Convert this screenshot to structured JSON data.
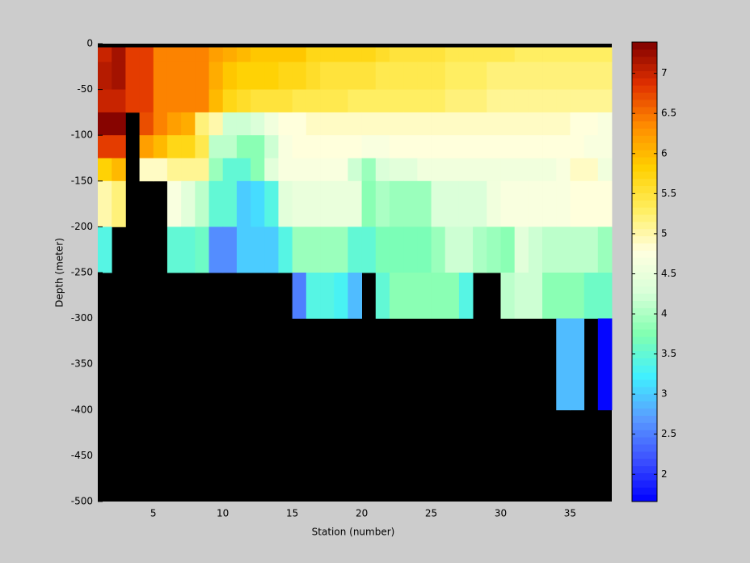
{
  "chart_data": {
    "type": "heatmap",
    "xlabel": "Station (number)",
    "ylabel": "Depth (meter)",
    "x": [
      1,
      2,
      3,
      4,
      5,
      6,
      7,
      8,
      9,
      10,
      11,
      12,
      13,
      14,
      15,
      16,
      17,
      18,
      19,
      20,
      21,
      22,
      23,
      24,
      25,
      26,
      27,
      28,
      29,
      30,
      31,
      32,
      33,
      34,
      35,
      36,
      37,
      38
    ],
    "y": [
      -4,
      -20,
      -50,
      -75,
      -100,
      -125,
      -150,
      -200,
      -250,
      -300,
      -400
    ],
    "values": [
      [
        7.0,
        7.2,
        6.8,
        6.8,
        6.4,
        6.4,
        6.4,
        6.4,
        6.2,
        6.1,
        6.0,
        5.9,
        5.9,
        5.9,
        5.9,
        5.7,
        5.7,
        5.7,
        5.7,
        5.7,
        5.6,
        5.5,
        5.5,
        5.5,
        5.5,
        5.4,
        5.4,
        5.4,
        5.4,
        5.4,
        5.3,
        5.3,
        5.3,
        5.3,
        5.3,
        5.3,
        5.3
      ],
      [
        7.1,
        7.2,
        6.8,
        6.8,
        6.4,
        6.4,
        6.4,
        6.4,
        6.1,
        5.9,
        5.8,
        5.8,
        5.8,
        5.7,
        5.7,
        5.6,
        5.5,
        5.5,
        5.5,
        5.5,
        5.4,
        5.4,
        5.4,
        5.4,
        5.4,
        5.3,
        5.3,
        5.3,
        5.2,
        5.2,
        5.2,
        5.2,
        5.2,
        5.2,
        5.2,
        5.2,
        5.2
      ],
      [
        7.0,
        7.0,
        6.8,
        6.8,
        6.4,
        6.4,
        6.4,
        6.4,
        6.0,
        5.7,
        5.6,
        5.5,
        5.5,
        5.5,
        5.4,
        5.4,
        5.4,
        5.4,
        5.3,
        5.3,
        5.3,
        5.3,
        5.3,
        5.3,
        5.3,
        5.2,
        5.2,
        5.2,
        5.1,
        5.1,
        5.1,
        5.1,
        5.1,
        5.1,
        5.1,
        5.1,
        5.1
      ],
      [
        7.35,
        7.35,
        null,
        6.7,
        6.4,
        6.2,
        6.1,
        5.2,
        5.0,
        4.2,
        4.2,
        4.3,
        4.6,
        4.8,
        4.8,
        4.9,
        4.9,
        4.9,
        4.9,
        4.9,
        4.9,
        4.9,
        4.9,
        4.9,
        4.9,
        4.9,
        4.9,
        4.9,
        4.9,
        4.9,
        4.9,
        4.9,
        4.9,
        4.9,
        4.8,
        4.8,
        4.7
      ],
      [
        6.8,
        6.8,
        null,
        6.2,
        6.0,
        5.7,
        5.7,
        5.4,
        4.1,
        4.1,
        3.8,
        3.8,
        4.2,
        4.7,
        4.8,
        4.8,
        4.8,
        4.8,
        4.8,
        4.7,
        4.7,
        4.8,
        4.8,
        4.8,
        4.8,
        4.8,
        4.8,
        4.8,
        4.8,
        4.8,
        4.8,
        4.8,
        4.8,
        4.8,
        4.8,
        4.7,
        4.7
      ],
      [
        5.8,
        6.0,
        null,
        4.9,
        4.9,
        5.1,
        5.1,
        5.1,
        3.9,
        3.5,
        3.5,
        3.8,
        4.4,
        4.7,
        4.7,
        4.7,
        4.7,
        4.7,
        4.2,
        3.9,
        4.3,
        4.4,
        4.4,
        4.6,
        4.6,
        4.6,
        4.6,
        4.6,
        4.6,
        4.6,
        4.6,
        4.6,
        4.6,
        4.7,
        4.9,
        4.9,
        4.6
      ],
      [
        5.0,
        5.2,
        null,
        null,
        null,
        4.7,
        4.4,
        4.1,
        3.5,
        3.5,
        3.0,
        3.1,
        3.4,
        4.4,
        4.5,
        4.5,
        4.5,
        4.5,
        4.5,
        3.8,
        4.0,
        3.9,
        3.9,
        3.9,
        4.3,
        4.3,
        4.3,
        4.3,
        4.6,
        4.7,
        4.7,
        4.7,
        4.7,
        4.7,
        4.8,
        4.8,
        4.8
      ],
      [
        3.4,
        null,
        null,
        null,
        null,
        3.5,
        3.5,
        3.6,
        2.6,
        2.6,
        3.0,
        3.0,
        3.0,
        3.4,
        3.9,
        3.9,
        3.9,
        3.9,
        3.5,
        3.5,
        3.7,
        3.7,
        3.7,
        3.7,
        3.9,
        4.2,
        4.2,
        4.0,
        3.9,
        3.8,
        4.4,
        4.2,
        4.1,
        4.1,
        4.1,
        4.1,
        3.9
      ],
      [
        null,
        null,
        null,
        null,
        null,
        null,
        null,
        null,
        null,
        null,
        null,
        null,
        null,
        null,
        2.5,
        3.4,
        3.4,
        3.3,
        2.9,
        null,
        3.5,
        3.8,
        3.8,
        3.8,
        3.8,
        3.8,
        3.4,
        null,
        null,
        4.1,
        4.2,
        4.2,
        3.8,
        3.8,
        3.8,
        3.6,
        3.6
      ],
      [
        null,
        null,
        null,
        null,
        null,
        null,
        null,
        null,
        null,
        null,
        null,
        null,
        null,
        null,
        null,
        null,
        null,
        null,
        null,
        null,
        null,
        null,
        null,
        null,
        null,
        null,
        null,
        null,
        null,
        null,
        null,
        null,
        null,
        2.9,
        2.9,
        null,
        1.7
      ]
    ],
    "xlim": [
      1,
      38
    ],
    "ylim": [
      -500,
      0
    ],
    "xticks": [
      5,
      10,
      15,
      20,
      25,
      30,
      35
    ],
    "yticks": [
      -500,
      -450,
      -400,
      -350,
      -300,
      -250,
      -200,
      -150,
      -100,
      -50,
      0
    ],
    "clim": [
      1.66,
      7.39
    ],
    "cticks": [
      2,
      2.5,
      3,
      3.5,
      4,
      4.5,
      5,
      5.5,
      6,
      6.5,
      7
    ],
    "colormap": [
      "#0000ff",
      "#3c50ff",
      "#5a9cff",
      "#40f0ff",
      "#80ffb0",
      "#d8ffd8",
      "#ffffe0",
      "#ffee60",
      "#ffd000",
      "#ff8c00",
      "#e03000",
      "#800000"
    ],
    "background": "#000000"
  }
}
